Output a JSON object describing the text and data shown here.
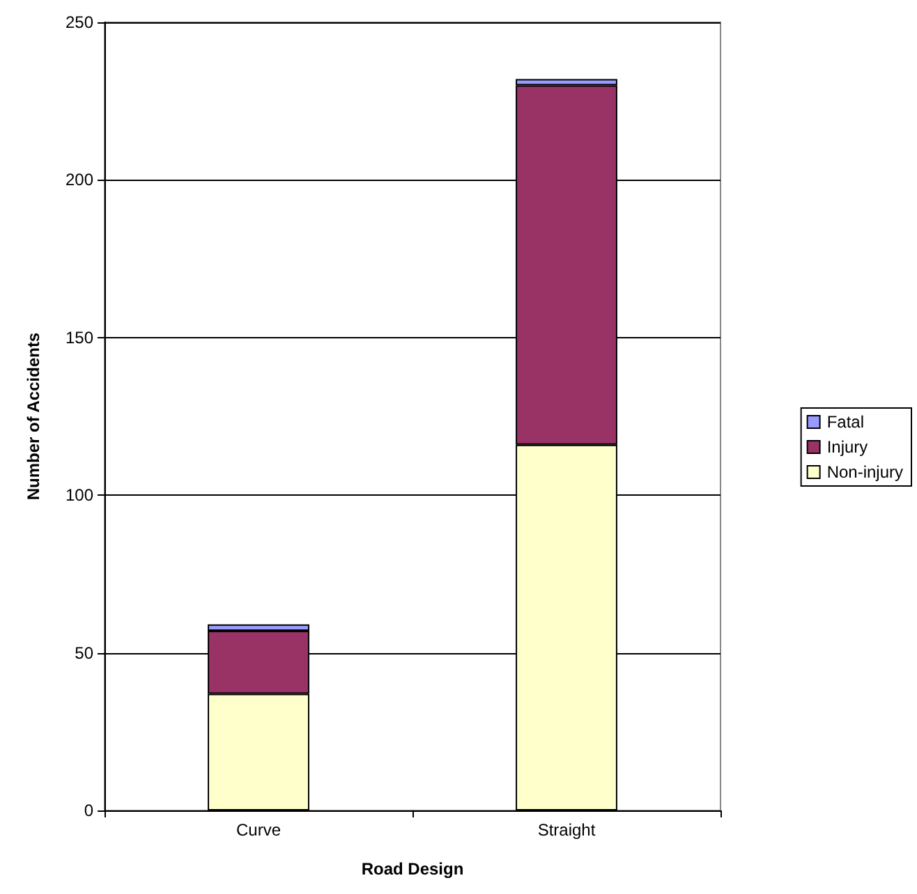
{
  "chart_data": {
    "type": "bar",
    "stacked": true,
    "xlabel": "Road Design",
    "ylabel": "Number of Accidents",
    "categories": [
      "Curve",
      "Straight"
    ],
    "series": [
      {
        "name": "Non-injury",
        "color": "#ffffcc",
        "values": [
          37,
          116
        ]
      },
      {
        "name": "Injury",
        "color": "#993366",
        "values": [
          20,
          114
        ]
      },
      {
        "name": "Fatal",
        "color": "#9999ff",
        "values": [
          2,
          2
        ]
      }
    ],
    "ylim": [
      0,
      250
    ],
    "yticks": [
      0,
      50,
      100,
      150,
      200,
      250
    ],
    "grid": "y",
    "legend": "right"
  }
}
